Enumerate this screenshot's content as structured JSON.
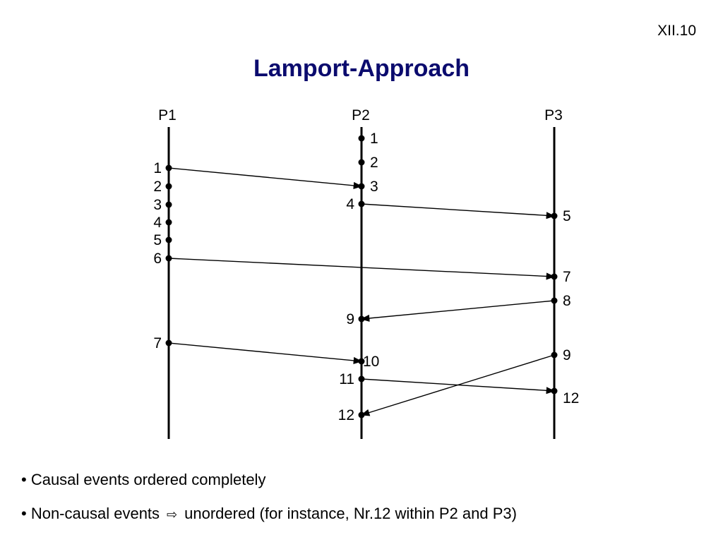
{
  "slide_number": "XII.10",
  "title": "Lamport-Approach",
  "colors": {
    "title": "#0b0b6e",
    "ink": "#000000"
  },
  "processes": [
    {
      "label": "P1",
      "events": [
        "1",
        "2",
        "3",
        "4",
        "5",
        "6",
        "7"
      ]
    },
    {
      "label": "P2",
      "events": [
        "1",
        "2",
        "3",
        "4",
        "9",
        "10",
        "11",
        "12"
      ]
    },
    {
      "label": "P3",
      "events": [
        "5",
        "7",
        "8",
        "9",
        "12"
      ]
    }
  ],
  "messages": [
    {
      "from": "P1",
      "from_event": "1",
      "to": "P2",
      "to_event": "3"
    },
    {
      "from": "P2",
      "from_event": "4",
      "to": "P3",
      "to_event": "5"
    },
    {
      "from": "P1",
      "from_event": "6",
      "to": "P3",
      "to_event": "7"
    },
    {
      "from": "P3",
      "from_event": "8",
      "to": "P2",
      "to_event": "9"
    },
    {
      "from": "P1",
      "from_event": "7",
      "to": "P2",
      "to_event": "10"
    },
    {
      "from": "P2",
      "from_event": "11",
      "to": "P3",
      "to_event": "12"
    },
    {
      "from": "P3",
      "from_event": "9",
      "to": "P2",
      "to_event": "12"
    }
  ],
  "bullets": {
    "item1": "Causal events ordered completely",
    "item2_part1": "Non-causal events",
    "item2_icon": "hollow-right-arrow-icon",
    "item2_part2": "unordered (for instance, Nr.12 within P2 and P3)"
  }
}
